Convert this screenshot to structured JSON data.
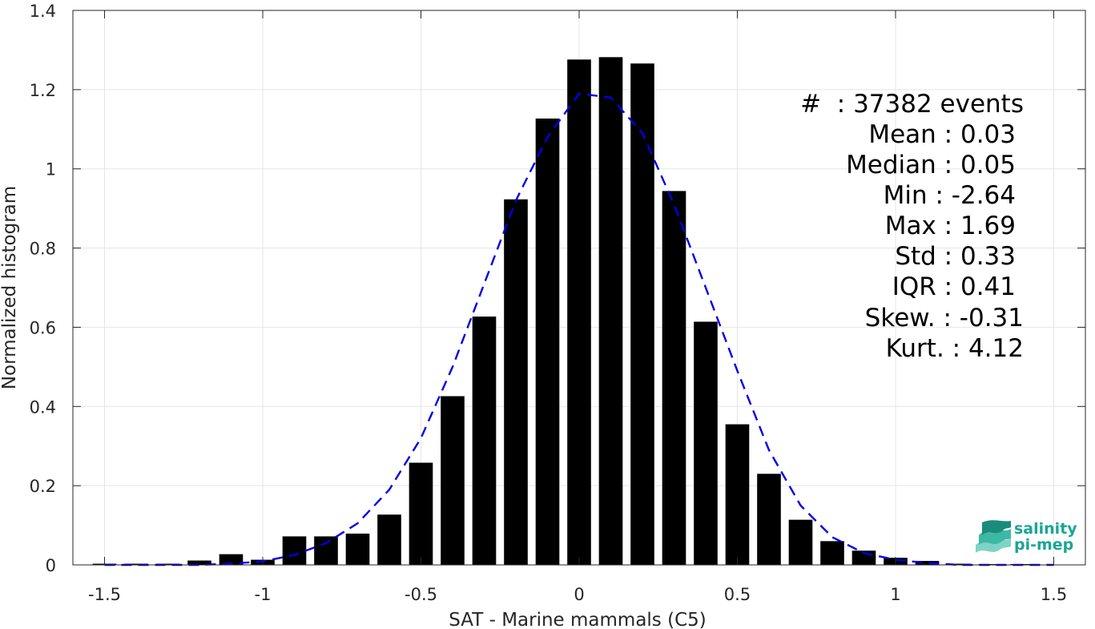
{
  "chart_data": {
    "type": "bar",
    "xlabel": "SAT - Marine mammals (C5)",
    "ylabel": "Normalized histogram",
    "xlim": [
      -1.6,
      1.6
    ],
    "ylim": [
      0,
      1.4
    ],
    "xticks": [
      -1.5,
      -1,
      -0.5,
      0,
      0.5,
      1,
      1.5
    ],
    "xtick_labels": [
      "-1.5",
      "-1",
      "-0.5",
      "0",
      "0.5",
      "1",
      "1.5"
    ],
    "yticks": [
      0,
      0.2,
      0.4,
      0.6,
      0.8,
      1,
      1.2,
      1.4
    ],
    "ytick_labels": [
      "0",
      "0.2",
      "0.4",
      "0.6",
      "0.8",
      "1",
      "1.2",
      "1.4"
    ],
    "grid": true,
    "bar_width": 0.075,
    "bar_color": "#000000",
    "fit_color": "#0000e6",
    "series": [
      {
        "kind": "histogram",
        "x": [
          -1.5,
          -1.4,
          -1.3,
          -1.2,
          -1.1,
          -1.0,
          -0.9,
          -0.8,
          -0.7,
          -0.6,
          -0.5,
          -0.4,
          -0.3,
          -0.2,
          -0.1,
          0.0,
          0.1,
          0.2,
          0.3,
          0.4,
          0.5,
          0.6,
          0.7,
          0.8,
          0.9,
          1.0,
          1.1,
          1.2,
          1.3,
          1.4,
          1.5
        ],
        "values": [
          0.003,
          0.003,
          0.003,
          0.011,
          0.027,
          0.013,
          0.072,
          0.072,
          0.079,
          0.127,
          0.258,
          0.426,
          0.627,
          0.923,
          1.127,
          1.276,
          1.282,
          1.266,
          0.944,
          0.614,
          0.355,
          0.23,
          0.114,
          0.06,
          0.036,
          0.018,
          0.01,
          0.003,
          0.002,
          0.002,
          0.001
        ]
      },
      {
        "kind": "fit",
        "style": "dashed",
        "x": [
          -1.5,
          -1.4,
          -1.3,
          -1.2,
          -1.1,
          -1.0,
          -0.9,
          -0.8,
          -0.7,
          -0.6,
          -0.5,
          -0.4,
          -0.3,
          -0.2,
          -0.1,
          0.0,
          0.1,
          0.2,
          0.3,
          0.4,
          0.5,
          0.6,
          0.7,
          0.8,
          0.9,
          1.0,
          1.1,
          1.2,
          1.3,
          1.4,
          1.5
        ],
        "values": [
          0.0,
          0.0,
          0.0,
          0.0,
          0.003,
          0.009,
          0.025,
          0.055,
          0.105,
          0.19,
          0.32,
          0.5,
          0.71,
          0.92,
          1.08,
          1.19,
          1.18,
          1.09,
          0.91,
          0.7,
          0.49,
          0.29,
          0.15,
          0.07,
          0.03,
          0.013,
          0.005,
          0.0,
          0.0,
          0.0,
          0.0
        ]
      }
    ],
    "annotations": [
      "#  : 37382 events",
      "Mean : 0.03",
      "Median : 0.05",
      "Min : -2.64",
      "Max : 1.69",
      "Std : 0.33",
      "IQR : 0.41",
      "Skew. : -0.31",
      "Kurt. : 4.12"
    ]
  },
  "logo": {
    "line1": "salinity",
    "line2": "pi-mep",
    "color": "#1aa595",
    "icon": "wave-stack-icon"
  }
}
